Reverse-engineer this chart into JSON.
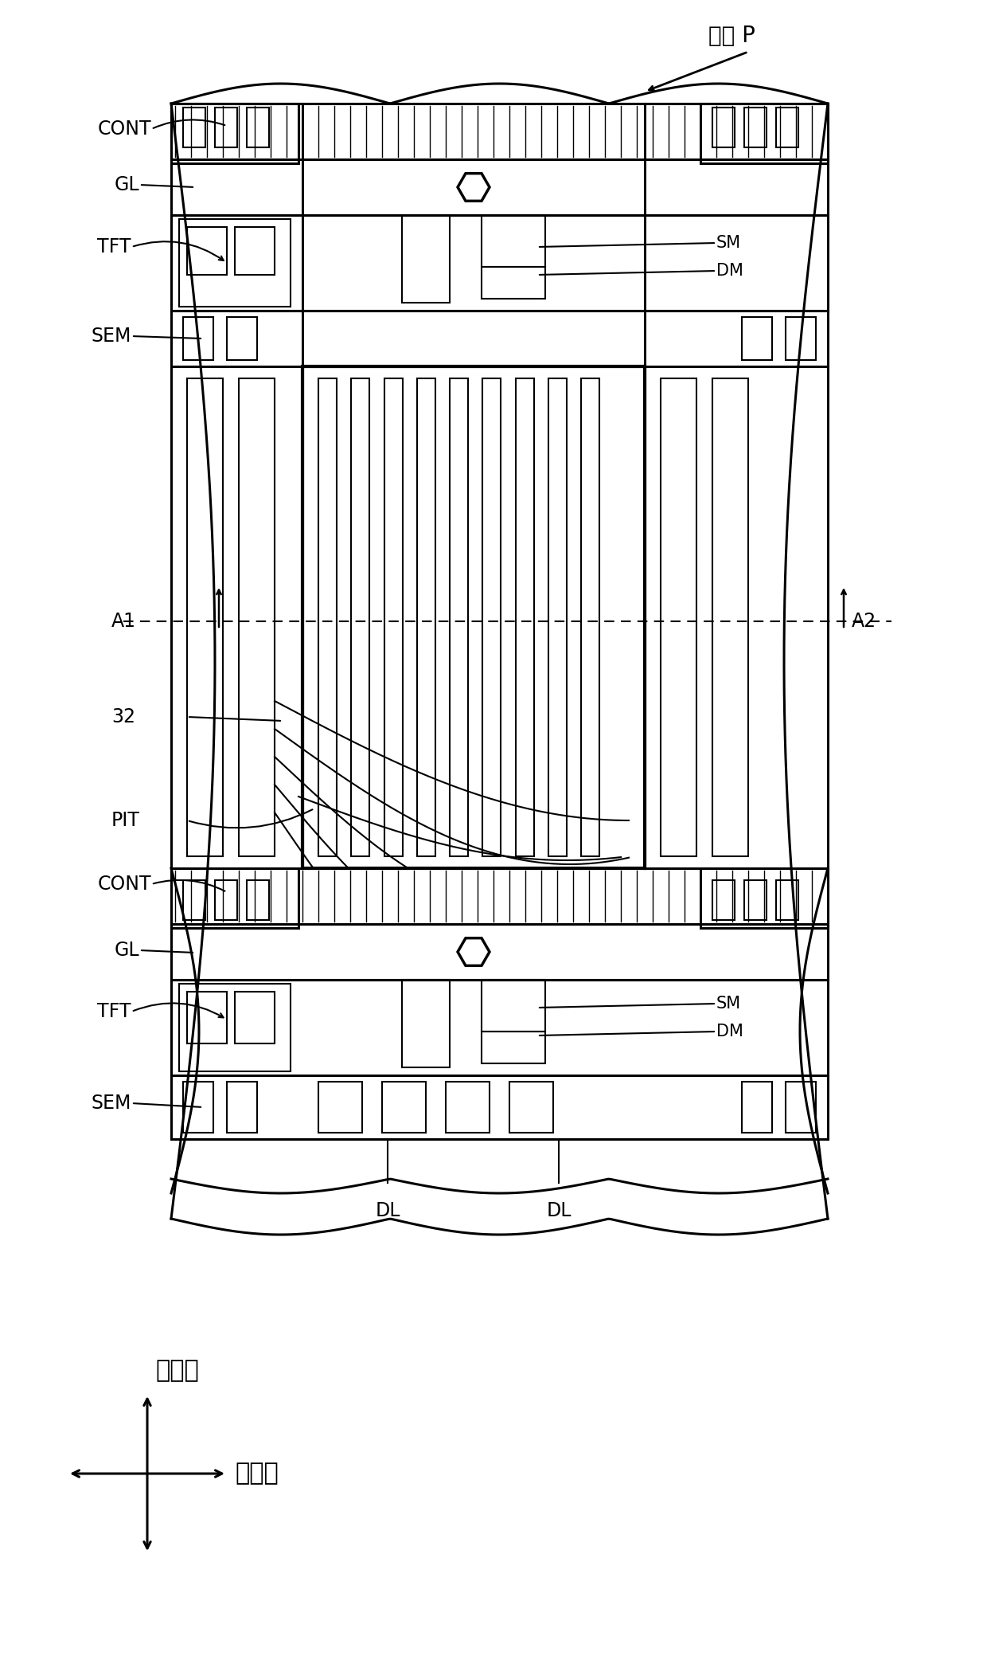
{
  "bg_color": "#ffffff",
  "line_color": "#000000",
  "title_text": "像素 P",
  "label_CONT": "CONT",
  "label_GL": "GL",
  "label_TFT": "TFT",
  "label_SEM": "SEM",
  "label_A1": "A1",
  "label_A2": "A2",
  "label_32": "32",
  "label_PIT": "PIT",
  "label_SM": "SM",
  "label_DM": "DM",
  "label_DL": "DL",
  "label_col": "列方向",
  "label_row": "行方向",
  "fig_width": 12.4,
  "fig_height": 20.84
}
